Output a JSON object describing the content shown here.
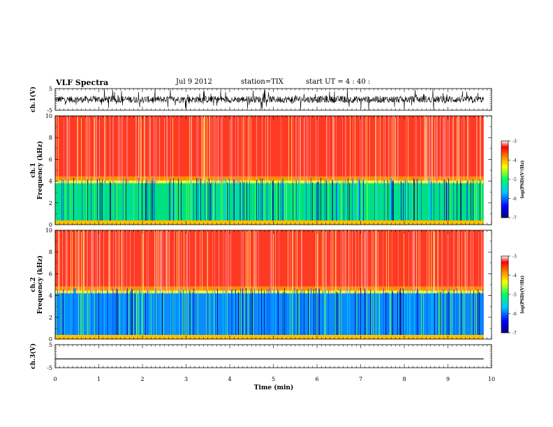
{
  "header": {
    "title": "VLF Spectra",
    "date": "Jul 9 2012",
    "station": "station=TIX",
    "start_time": "start UT = 4 : 40 :"
  },
  "chart_data": [
    {
      "id": "ch1-waveform",
      "type": "line",
      "ylabel": "ch.1(V)",
      "ylim": [
        -5,
        5
      ],
      "yticks": [
        "5",
        "-5"
      ],
      "note": "noisy broadband waveform, mostly between -2 and 2 V with frequent spikes to ±5 V"
    },
    {
      "id": "ch1-spectrogram",
      "type": "heatmap",
      "ylabel": "ch.1\nFrequency (kHz)",
      "ylim": [
        0,
        10
      ],
      "yticks": [
        "0",
        "2",
        "4",
        "6",
        "8",
        "10"
      ],
      "colorbar": {
        "label": "log(PSD)(V²/Hz)",
        "range": [
          -7,
          -3
        ],
        "ticks": [
          "-3",
          "-4",
          "-5",
          "-6",
          "-7"
        ]
      },
      "band_edge_khz": 3.8
    },
    {
      "id": "ch2-spectrogram",
      "type": "heatmap",
      "ylabel": "ch.2\nFrequency (kHz)",
      "ylim": [
        0,
        10
      ],
      "yticks": [
        "0",
        "2",
        "4",
        "6",
        "8",
        "10"
      ],
      "colorbar": {
        "label": "log(PSD)(V²/Hz)",
        "range": [
          -7,
          -3
        ],
        "ticks": [
          "-3",
          "-4",
          "-5",
          "-6",
          "-7"
        ]
      },
      "band_edge_khz": 4.2
    },
    {
      "id": "ch3-waveform",
      "type": "line",
      "ylabel": "ch.3(V)",
      "ylim": [
        -5,
        5
      ],
      "yticks": [
        "5",
        "-5"
      ],
      "value_v": -1.2
    }
  ],
  "x_axis": {
    "label": "Time (min)",
    "range": [
      0,
      10
    ],
    "ticks": [
      "0",
      "1",
      "2",
      "3",
      "4",
      "5",
      "6",
      "7",
      "8",
      "9",
      "10"
    ],
    "data_end_min": 9.82
  },
  "colors": {
    "axis": "#000000",
    "background": "#ffffff"
  }
}
